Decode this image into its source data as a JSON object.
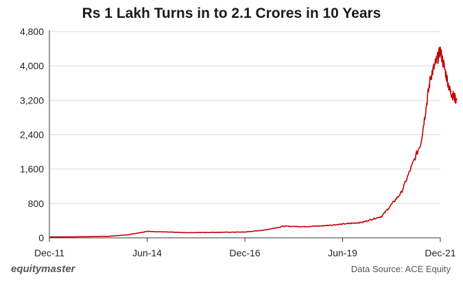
{
  "chart_data": {
    "type": "line",
    "title": "Rs 1 Lakh Turns in to 2.1 Crores in 10 Years",
    "xlabel": "",
    "ylabel": "",
    "x_tick_labels": [
      "Dec-11",
      "Jun-14",
      "Dec-16",
      "Jun-19",
      "Dec-21"
    ],
    "y_tick_labels": [
      "0",
      "800",
      "1,600",
      "2,400",
      "3,200",
      "4,000",
      "4,800"
    ],
    "ylim": [
      0,
      4800
    ],
    "grid": true,
    "series": [
      {
        "color": "#c00000",
        "points": [
          [
            "Dec-11",
            20
          ],
          [
            "Jun-12",
            22
          ],
          [
            "Dec-12",
            28
          ],
          [
            "Jun-13",
            35
          ],
          [
            "Dec-13",
            70
          ],
          [
            "Jun-14",
            150
          ],
          [
            "Dec-14",
            135
          ],
          [
            "Jun-15",
            120
          ],
          [
            "Dec-15",
            125
          ],
          [
            "Jun-16",
            130
          ],
          [
            "Dec-16",
            135
          ],
          [
            "Jun-17",
            180
          ],
          [
            "Dec-17",
            270
          ],
          [
            "Jun-18",
            260
          ],
          [
            "Dec-18",
            280
          ],
          [
            "Jun-19",
            320
          ],
          [
            "Dec-19",
            360
          ],
          [
            "Jun-20",
            500
          ],
          [
            "Dec-20",
            1050
          ],
          [
            "Jun-21",
            2200
          ],
          [
            "Sep-21",
            3750
          ],
          [
            "Dec-21",
            4350
          ],
          [
            "Mar-22",
            3400
          ],
          [
            "May-22",
            3200
          ]
        ]
      }
    ]
  },
  "footer": {
    "brand": "equitymaster",
    "source": "Data Source: ACE Equity"
  }
}
